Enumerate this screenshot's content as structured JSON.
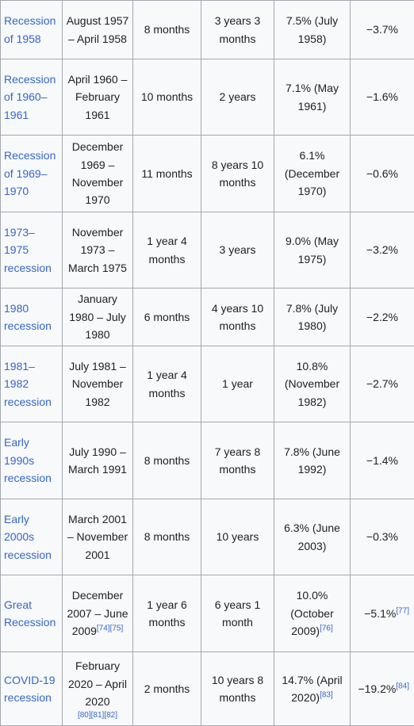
{
  "rows": [
    {
      "name": "Recession of 1958",
      "dates": "August 1957 – April 1958",
      "dates_cite": "",
      "duration": "8 months",
      "time_since": "3 years 3 months",
      "peak_unemployment": "7.5% (July 1958)",
      "unemployment_cite": "",
      "gdp_decline": "−3.7%",
      "gdp_cite": ""
    },
    {
      "name": "Recession of 1960–1961",
      "dates": "April 1960 – February 1961",
      "dates_cite": "",
      "duration": "10 months",
      "time_since": "2 years",
      "peak_unemployment": "7.1% (May 1961)",
      "unemployment_cite": "",
      "gdp_decline": "−1.6%",
      "gdp_cite": ""
    },
    {
      "name": "Recession of 1969–1970",
      "dates": "December 1969 – November 1970",
      "dates_cite": "",
      "duration": "11 months",
      "time_since": "8 years 10 months",
      "peak_unemployment": "6.1% (December 1970)",
      "unemployment_cite": "",
      "gdp_decline": "−0.6%",
      "gdp_cite": ""
    },
    {
      "name": "1973–1975 recession",
      "dates": "November 1973 – March 1975",
      "dates_cite": "",
      "duration": "1 year 4 months",
      "time_since": "3 years",
      "peak_unemployment": "9.0% (May 1975)",
      "unemployment_cite": "",
      "gdp_decline": "−3.2%",
      "gdp_cite": ""
    },
    {
      "name": "1980 recession",
      "dates": "January 1980 – July 1980",
      "dates_cite": "",
      "duration": "6 months",
      "time_since": "4 years 10 months",
      "peak_unemployment": "7.8% (July 1980)",
      "unemployment_cite": "",
      "gdp_decline": "−2.2%",
      "gdp_cite": ""
    },
    {
      "name": "1981–1982 recession",
      "dates": "July 1981 – November 1982",
      "dates_cite": "",
      "duration": "1 year 4 months",
      "time_since": "1 year",
      "peak_unemployment": "10.8% (November 1982)",
      "unemployment_cite": "",
      "gdp_decline": "−2.7%",
      "gdp_cite": ""
    },
    {
      "name": "Early 1990s recession",
      "dates": "July 1990 – March 1991",
      "dates_cite": "",
      "duration": "8 months",
      "time_since": "7 years 8 months",
      "peak_unemployment": "7.8% (June 1992)",
      "unemployment_cite": "",
      "gdp_decline": "−1.4%",
      "gdp_cite": ""
    },
    {
      "name": "Early 2000s recession",
      "dates": "March 2001 – November 2001",
      "dates_cite": "",
      "duration": "8 months",
      "time_since": "10 years",
      "peak_unemployment": "6.3% (June 2003)",
      "unemployment_cite": "",
      "gdp_decline": "−0.3%",
      "gdp_cite": ""
    },
    {
      "name": "Great Recession",
      "dates": "December 2007 – June 2009",
      "dates_cite": "[74][75]",
      "duration": "1 year 6 months",
      "time_since": "6 years 1 month",
      "peak_unemployment": "10.0% (October 2009)",
      "unemployment_cite": "[76]",
      "gdp_decline": "−5.1%",
      "gdp_cite": "[77]"
    },
    {
      "name": "COVID-19 recession",
      "dates": "February 2020 – April 2020",
      "dates_cite": "[80][81][82]",
      "duration": "2 months",
      "time_since": "10 years 8 months",
      "peak_unemployment": "14.7% (April 2020)",
      "unemployment_cite": "[83]",
      "gdp_decline": "−19.2%",
      "gdp_cite": "[84]"
    }
  ]
}
